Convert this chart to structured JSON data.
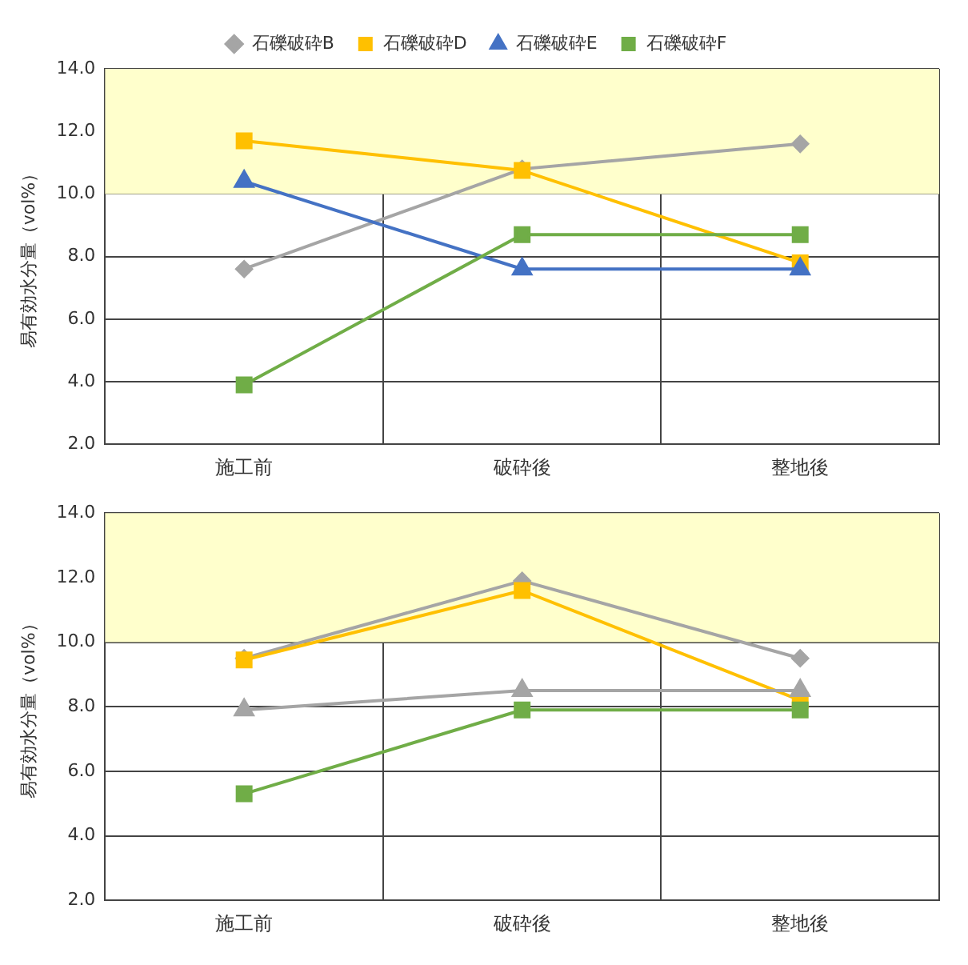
{
  "chart_data": [
    {
      "type": "line",
      "ylabel": "易有効水分量（vol%）",
      "categories": [
        "施工前",
        "破砕後",
        "整地後"
      ],
      "ylim": [
        2,
        14
      ],
      "yticks": [
        {
          "value": 2,
          "label": "2.0"
        },
        {
          "value": 4,
          "label": "4.0"
        },
        {
          "value": 6,
          "label": "6.0"
        },
        {
          "value": 8,
          "label": "8.0"
        },
        {
          "value": 10,
          "label": "10.0"
        },
        {
          "value": 12,
          "label": "12.0"
        },
        {
          "value": 14,
          "label": "14.0"
        }
      ],
      "grid": true,
      "legend": "top",
      "bands": [
        {
          "axis": "y",
          "from": 10,
          "to": 14,
          "color": "#ffffcc"
        }
      ],
      "series": [
        {
          "name": "石礫破砕B",
          "color": "#a5a5a5",
          "marker": "diamond",
          "values": [
            7.6,
            10.8,
            11.6
          ]
        },
        {
          "name": "石礫破砕D",
          "color": "#ffc000",
          "marker": "square",
          "values": [
            11.7,
            10.75,
            7.8
          ]
        },
        {
          "name": "石礫破砕E",
          "color": "#4472c4",
          "marker": "triangle",
          "values": [
            10.4,
            7.6,
            7.6
          ]
        },
        {
          "name": "石礫破砕F",
          "color": "#70ad47",
          "marker": "square",
          "values": [
            3.9,
            8.7,
            8.7
          ]
        }
      ]
    },
    {
      "type": "line",
      "ylabel": "易有効水分量（vol%）",
      "categories": [
        "施工前",
        "破砕後",
        "整地後"
      ],
      "ylim": [
        2,
        14
      ],
      "yticks": [
        {
          "value": 2,
          "label": "2.0"
        },
        {
          "value": 4,
          "label": "4.0"
        },
        {
          "value": 6,
          "label": "6.0"
        },
        {
          "value": 8,
          "label": "8.0"
        },
        {
          "value": 10,
          "label": "10.0"
        },
        {
          "value": 12,
          "label": "12.0"
        },
        {
          "value": 14,
          "label": "14.0"
        }
      ],
      "grid": true,
      "bands": [
        {
          "axis": "y",
          "from": 10,
          "to": 14,
          "color": "#ffffcc"
        }
      ],
      "series": [
        {
          "color": "#a5a5a5",
          "marker": "diamond",
          "values": [
            9.5,
            11.9,
            9.5
          ]
        },
        {
          "color": "#ffc000",
          "marker": "square",
          "values": [
            9.45,
            11.6,
            8.2
          ]
        },
        {
          "color": "#a5a5a5",
          "marker": "triangle",
          "values": [
            7.9,
            8.5,
            8.5
          ]
        },
        {
          "color": "#70ad47",
          "marker": "square",
          "values": [
            5.3,
            7.9,
            7.9
          ]
        }
      ]
    }
  ]
}
